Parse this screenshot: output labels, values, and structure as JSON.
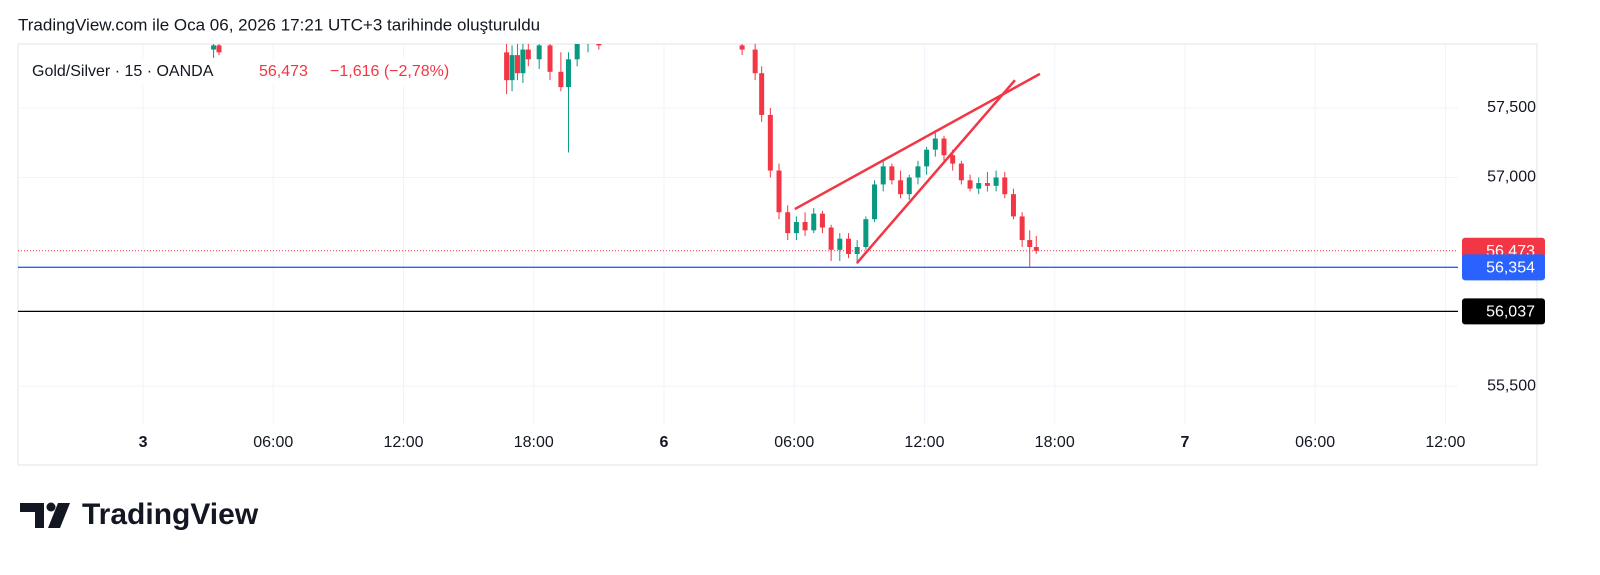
{
  "header": "TradingView.com ile Oca 06, 2026 17:21 UTC+3 tarihinde oluşturuldu",
  "brand": "TradingView",
  "chart_data": {
    "type": "candlestick",
    "symbol": "Gold/Silver · 15 · OANDA",
    "last_price": "56,473",
    "change": "−1,616 (−2,78%)",
    "up_color": "#089981",
    "down_color": "#f23645",
    "xlim": [
      -5.76,
      60.58
    ],
    "ylim": [
      55.22,
      57.96
    ],
    "xticks": [
      {
        "value": 0,
        "label": "3"
      },
      {
        "value": 6,
        "label": "06:00"
      },
      {
        "value": 12,
        "label": "12:00"
      },
      {
        "value": 18,
        "label": "18:00"
      },
      {
        "value": 24,
        "label": "6"
      },
      {
        "value": 30,
        "label": "06:00"
      },
      {
        "value": 36,
        "label": "12:00"
      },
      {
        "value": 42,
        "label": "18:00"
      },
      {
        "value": 48,
        "label": "7"
      },
      {
        "value": 54,
        "label": "06:00"
      },
      {
        "value": 60,
        "label": "12:00"
      }
    ],
    "yticks": [
      {
        "value": 55.5,
        "label": "55,500"
      },
      {
        "value": 57,
        "label": "57,000"
      },
      {
        "value": 57.5,
        "label": "57,500"
      }
    ],
    "grid": true,
    "candles": {
      "x": [
        3.25,
        3.5,
        16.75,
        17.0,
        17.25,
        17.5,
        17.75,
        18.25,
        18.75,
        19.25,
        19.6,
        20.0,
        20.5,
        21.0,
        27.6,
        28.2,
        28.5,
        28.9,
        29.3,
        29.7,
        30.1,
        30.5,
        30.9,
        31.3,
        31.7,
        32.1,
        32.5,
        32.9,
        33.3,
        33.7,
        34.1,
        34.5,
        34.9,
        35.3,
        35.7,
        36.1,
        36.5,
        36.9,
        37.3,
        37.7,
        38.1,
        38.5,
        38.9,
        39.3,
        39.7,
        40.1,
        40.5,
        40.85,
        41.15
      ],
      "open": [
        57.92,
        57.95,
        57.9,
        57.7,
        57.88,
        57.75,
        57.92,
        57.85,
        57.95,
        57.76,
        57.65,
        57.85,
        57.96,
        57.98,
        57.95,
        57.92,
        57.75,
        57.45,
        57.05,
        56.75,
        56.6,
        56.68,
        56.62,
        56.74,
        56.64,
        56.48,
        56.56,
        56.45,
        56.5,
        56.7,
        56.95,
        57.08,
        56.98,
        56.88,
        57.0,
        57.08,
        57.2,
        57.28,
        57.16,
        57.1,
        56.98,
        56.92,
        56.96,
        56.94,
        57.0,
        56.88,
        56.72,
        56.55,
        56.5
      ],
      "high": [
        58.0,
        58.0,
        58.0,
        57.95,
        58.0,
        57.98,
        58.0,
        58.0,
        58.0,
        57.9,
        57.9,
        58.0,
        58.0,
        58.0,
        58.0,
        58.0,
        57.8,
        57.5,
        57.1,
        56.8,
        56.72,
        56.75,
        56.78,
        56.76,
        56.66,
        56.6,
        56.6,
        56.55,
        56.72,
        56.98,
        57.12,
        57.1,
        57.05,
        57.02,
        57.12,
        57.22,
        57.34,
        57.3,
        57.2,
        57.12,
        57.02,
        57.0,
        57.04,
        57.05,
        57.04,
        56.92,
        56.75,
        56.62,
        56.58
      ],
      "low": [
        57.86,
        57.88,
        57.6,
        57.62,
        57.7,
        57.68,
        57.8,
        57.78,
        57.7,
        57.62,
        57.18,
        57.8,
        57.9,
        57.92,
        57.88,
        57.7,
        57.4,
        57.0,
        56.7,
        56.55,
        56.55,
        56.58,
        56.6,
        56.6,
        56.4,
        56.4,
        56.42,
        56.38,
        56.48,
        56.68,
        56.9,
        56.95,
        56.85,
        56.84,
        56.95,
        57.02,
        57.15,
        57.12,
        57.05,
        56.95,
        56.9,
        56.88,
        56.9,
        56.9,
        56.85,
        56.7,
        56.5,
        56.36,
        56.45
      ],
      "close": [
        57.95,
        57.9,
        57.7,
        57.88,
        57.75,
        57.92,
        57.85,
        57.95,
        57.76,
        57.65,
        57.85,
        57.96,
        57.98,
        57.95,
        57.92,
        57.75,
        57.45,
        57.05,
        56.75,
        56.6,
        56.68,
        56.62,
        56.74,
        56.64,
        56.48,
        56.56,
        56.45,
        56.5,
        56.7,
        56.95,
        57.08,
        56.98,
        56.88,
        57.0,
        57.08,
        57.2,
        57.28,
        57.16,
        57.1,
        56.98,
        56.92,
        56.96,
        56.94,
        57.0,
        56.88,
        56.72,
        56.55,
        56.5,
        56.473
      ]
    },
    "trend_lines": [
      {
        "color": "#f23645",
        "x": [
          30.03,
          41.32
        ],
        "y": [
          56.773,
          57.745
        ]
      },
      {
        "color": "#f23645",
        "x": [
          32.89,
          40.17
        ],
        "y": [
          56.385,
          57.7
        ]
      }
    ],
    "price_lines": [
      {
        "value": 56.473,
        "label": "56,473",
        "color": "#f23645",
        "style": "dotted"
      },
      {
        "value": 56.354,
        "label": "56,354",
        "color": "#2962ff",
        "style": "solid"
      },
      {
        "value": 56.037,
        "label": "56,037",
        "color": "#000000",
        "style": "solid"
      }
    ]
  }
}
